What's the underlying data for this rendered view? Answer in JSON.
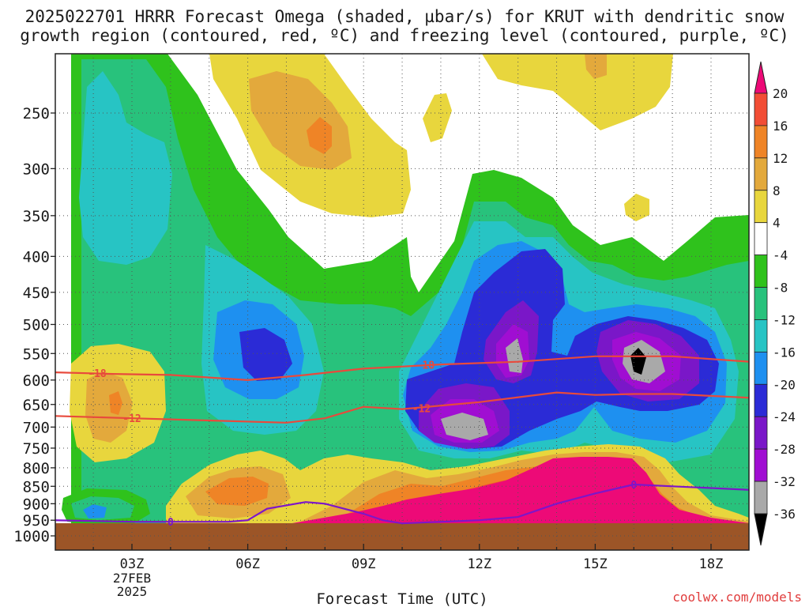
{
  "title": {
    "line1": "2025022701 HRRR Forecast Omega (shaded, µbar/s) for KRUT with dendritic snow",
    "line2": "growth region (contoured, red, ºC) and freezing level (contoured, purple, ºC)"
  },
  "xaxis_label": "Forecast Time (UTC)",
  "credit": "coolwx.com/models",
  "chart_data": {
    "type": "heatmap",
    "x_unit": "hours since 2025-02-27 00Z",
    "x_range": [
      1,
      19
    ],
    "x_ticks": [
      {
        "x": 3,
        "label": "03Z"
      },
      {
        "x": 6,
        "label": "06Z"
      },
      {
        "x": 9,
        "label": "09Z"
      },
      {
        "x": 12,
        "label": "12Z"
      },
      {
        "x": 15,
        "label": "15Z"
      },
      {
        "x": 18,
        "label": "18Z"
      }
    ],
    "x_date_label": [
      "27FEB",
      "2025"
    ],
    "y_unit": "hPa",
    "y_range": [
      1040,
      210
    ],
    "y_ticks": [
      250,
      300,
      350,
      400,
      450,
      500,
      550,
      600,
      650,
      700,
      750,
      800,
      850,
      900,
      950,
      1000
    ],
    "grid": true,
    "colorbar": {
      "labels": [
        20,
        16,
        12,
        8,
        4,
        -4,
        -8,
        -12,
        -16,
        -20,
        -24,
        -28,
        -32,
        -36
      ],
      "colors": [
        "#ed0a77",
        "#f24d35",
        "#ef8426",
        "#e3a93c",
        "#e8d63d",
        "#ffffff",
        "#2fc21c",
        "#28c27c",
        "#27c4c4",
        "#1e90f0",
        "#2b2bd6",
        "#7a17c8",
        "#a00ed2",
        "#a9a9a9",
        "#000000"
      ]
    },
    "contours": [
      {
        "name": "dgz_-18",
        "label": "-18",
        "color": "#e84a3c",
        "points": [
          [
            1,
            585
          ],
          [
            2.5,
            588
          ],
          [
            4,
            590
          ],
          [
            5,
            595
          ],
          [
            6,
            600
          ],
          [
            7.5,
            590
          ],
          [
            9,
            578
          ],
          [
            11,
            570
          ],
          [
            13,
            565
          ],
          [
            15,
            555
          ],
          [
            17,
            555
          ],
          [
            19,
            565
          ]
        ]
      },
      {
        "name": "dgz_-12",
        "label": "-12",
        "color": "#e84a3c",
        "points": [
          [
            1,
            675
          ],
          [
            3,
            680
          ],
          [
            5,
            685
          ],
          [
            7,
            690
          ],
          [
            8,
            680
          ],
          [
            9,
            655
          ],
          [
            10,
            660
          ],
          [
            12,
            645
          ],
          [
            14,
            625
          ],
          [
            15,
            630
          ],
          [
            16,
            628
          ],
          [
            17,
            628
          ],
          [
            19,
            636
          ]
        ]
      },
      {
        "name": "freezing_0",
        "label": "0",
        "color": "#7d16c9",
        "points": [
          [
            1,
            950
          ],
          [
            3,
            955
          ],
          [
            4.5,
            955
          ],
          [
            5.5,
            955
          ],
          [
            6,
            950
          ],
          [
            6.5,
            915
          ],
          [
            7.5,
            895
          ],
          [
            8,
            900
          ],
          [
            9,
            930
          ],
          [
            9.5,
            950
          ],
          [
            10,
            960
          ],
          [
            11,
            955
          ],
          [
            12,
            950
          ],
          [
            13,
            940
          ],
          [
            14,
            900
          ],
          [
            15,
            870
          ],
          [
            16,
            845
          ],
          [
            17,
            850
          ],
          [
            18,
            855
          ],
          [
            19,
            860
          ]
        ]
      }
    ]
  }
}
